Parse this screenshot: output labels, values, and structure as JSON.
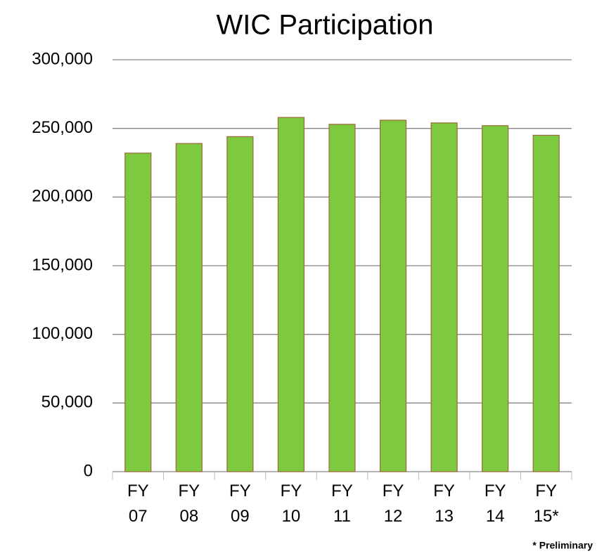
{
  "chart_data": {
    "type": "bar",
    "title": "WIC Participation",
    "categories": [
      "FY 07",
      "FY 08",
      "FY 09",
      "FY 10",
      "FY 11",
      "FY 12",
      "FY 13",
      "FY 14",
      "FY 15*"
    ],
    "values": [
      232000,
      239000,
      244000,
      258000,
      253000,
      256000,
      254000,
      252000,
      245000
    ],
    "color": "#7dc940",
    "ylim": [
      0,
      300000
    ],
    "yticks": [
      0,
      {
        "value": 50000,
        "label": "50,000"
      },
      {
        "value": 100000,
        "label": "100,000"
      },
      {
        "value": 150000,
        "label": "150,000"
      },
      {
        "value": 200000,
        "label": "200,000"
      },
      {
        "value": 250000,
        "label": "250,000"
      },
      {
        "value": 300000,
        "label": "300,000"
      }
    ],
    "grid": true,
    "annotation": "* Preliminary"
  }
}
